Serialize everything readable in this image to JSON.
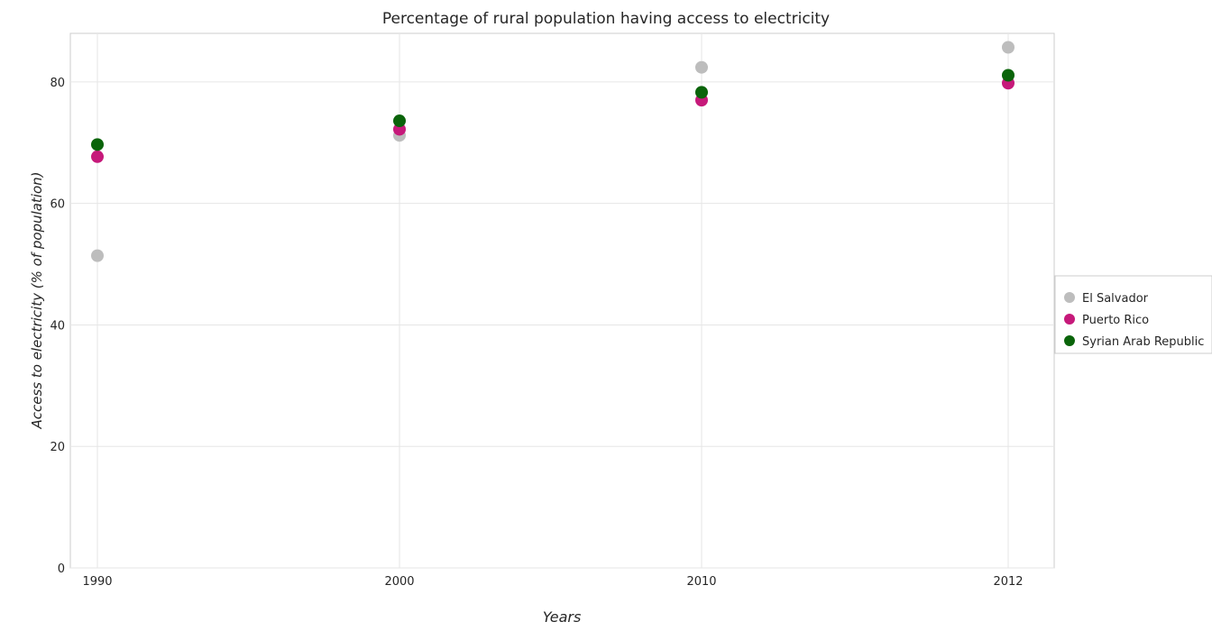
{
  "chart_data": {
    "type": "scatter",
    "title": "Percentage of rural population having access to electricity",
    "xlabel": "Years",
    "ylabel": "Access to electricity (% of population)",
    "categories": [
      "1990",
      "2000",
      "2010",
      "2012"
    ],
    "ylim": [
      0,
      88
    ],
    "yticks": [
      0,
      20,
      40,
      60,
      80
    ],
    "grid": true,
    "legend_position": "right",
    "series": [
      {
        "name": "El Salvador",
        "color": "#bdbdbd",
        "values": [
          51.4,
          71.2,
          82.4,
          85.7
        ]
      },
      {
        "name": "Puerto Rico",
        "color": "#c6197a",
        "values": [
          67.7,
          72.2,
          77.0,
          79.8
        ]
      },
      {
        "name": "Syrian Arab Republic",
        "color": "#0a640a",
        "values": [
          69.7,
          73.6,
          78.3,
          81.1
        ]
      }
    ]
  }
}
